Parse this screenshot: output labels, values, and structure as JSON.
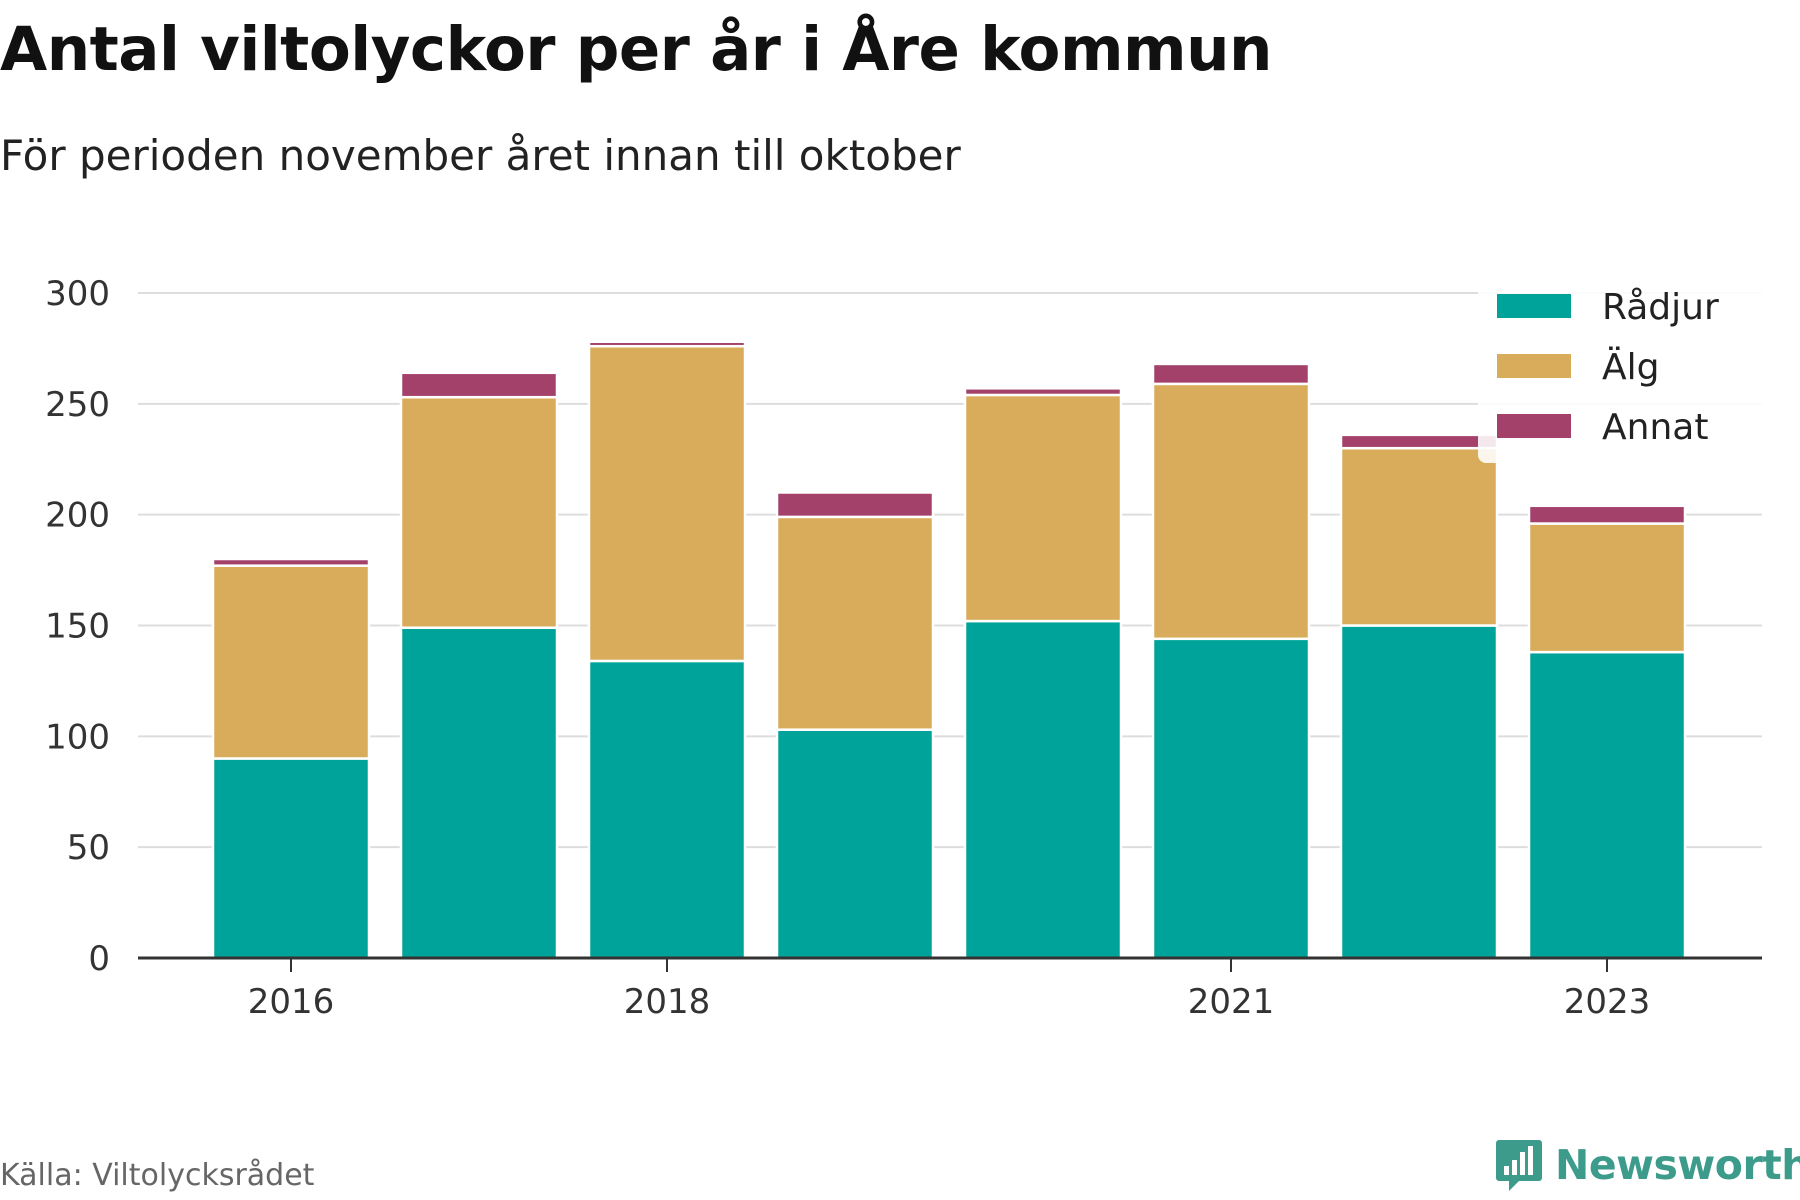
{
  "header": {
    "title": "Antal viltolyckor per år i Åre kommun",
    "subtitle": "För perioden november året innan till oktober"
  },
  "footer": {
    "source": "Källa: Viltolycksrådet",
    "brand": "Newsworthy"
  },
  "colors": {
    "radjur": "#00a39a",
    "alg": "#d8ac5b",
    "annat": "#a3416a",
    "grid": "#dddddd",
    "axis": "#333333",
    "brand": "#3d9b8b"
  },
  "chart_data": {
    "type": "bar",
    "stacked": true,
    "categories": [
      "2016",
      "2017",
      "2018",
      "2019",
      "2020",
      "2021",
      "2022",
      "2023"
    ],
    "x_tick_labels": [
      "2016",
      "2018",
      "2021",
      "2023"
    ],
    "series": [
      {
        "name": "Rådjur",
        "color": "#00a39a",
        "values": [
          90,
          149,
          134,
          103,
          152,
          144,
          150,
          138
        ]
      },
      {
        "name": "Älg",
        "color": "#d8ac5b",
        "values": [
          87,
          104,
          142,
          96,
          102,
          115,
          80,
          58
        ]
      },
      {
        "name": "Annat",
        "color": "#a3416a",
        "values": [
          3,
          11,
          2,
          11,
          3,
          9,
          6,
          8
        ]
      }
    ],
    "y_ticks": [
      "0",
      "50",
      "100",
      "150",
      "200",
      "250",
      "300"
    ],
    "ylim": [
      0,
      300
    ],
    "grid": true,
    "legend_position": "top-right"
  }
}
